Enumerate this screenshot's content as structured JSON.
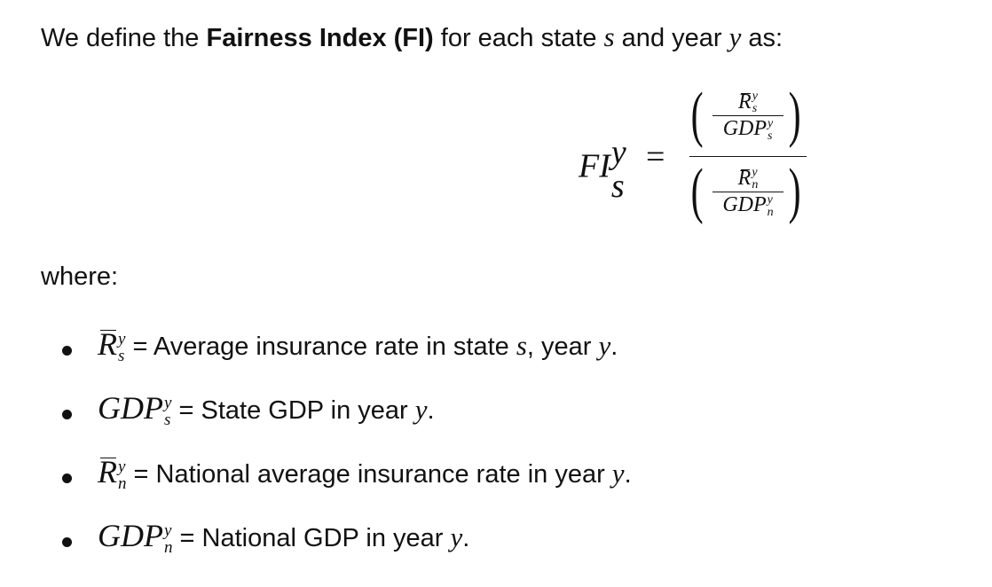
{
  "intro": {
    "prefix": "We define the ",
    "term": "Fairness Index (FI)",
    "middle": " for each state ",
    "var_s": "s",
    "and_year": " and year ",
    "var_y": "y",
    "suffix": " as:"
  },
  "formula": {
    "lhs_base": "FI",
    "lhs_sup": "y",
    "lhs_sub": "s",
    "equals": "=",
    "numerator": {
      "r_base": "R",
      "r_sup": "y",
      "r_sub": "s",
      "gdp_base": "GDP",
      "gdp_sup": "y",
      "gdp_sub": "s"
    },
    "denominator": {
      "r_base": "R",
      "r_sup": "y",
      "r_sub": "n",
      "gdp_base": "GDP",
      "gdp_sup": "y",
      "gdp_sub": "n"
    },
    "left_paren": "(",
    "right_paren": ")"
  },
  "where_label": "where:",
  "definitions": [
    {
      "var_base": "R",
      "sup": "y",
      "sub": "s",
      "text_pre": " = Average insurance rate in state ",
      "m1": "s",
      "mid": ", year ",
      "m2": "y",
      "end": "."
    },
    {
      "var_base": "GDP",
      "sup": "y",
      "sub": "s",
      "text_pre": " = State GDP in year ",
      "m1": "y",
      "mid": "",
      "m2": "",
      "end": "."
    },
    {
      "var_base": "R",
      "sup": "y",
      "sub": "n",
      "text_pre": " = National average insurance rate in year ",
      "m1": "y",
      "mid": "",
      "m2": "",
      "end": "."
    },
    {
      "var_base": "GDP",
      "sup": "y",
      "sub": "n",
      "text_pre": " = National GDP in year ",
      "m1": "y",
      "mid": "",
      "m2": "",
      "end": "."
    }
  ]
}
